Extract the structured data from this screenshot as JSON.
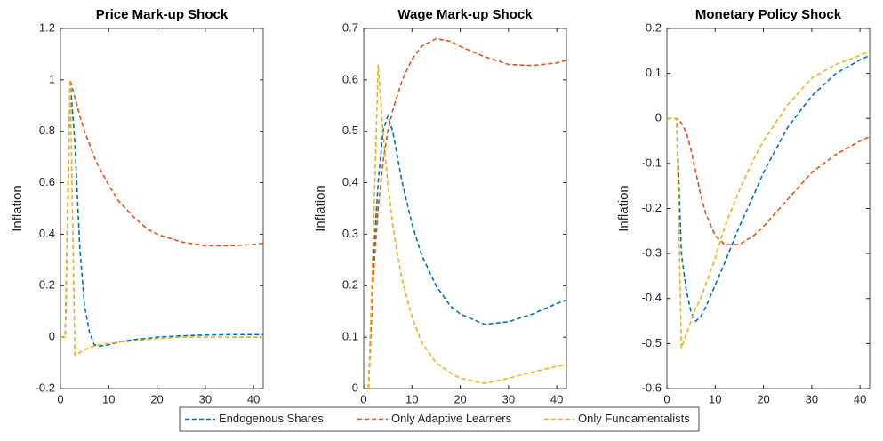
{
  "chart_data": [
    {
      "type": "line",
      "title": "Price Mark-up Shock",
      "y_label": "Inflation",
      "x": [
        0,
        1,
        2,
        3,
        4,
        5,
        6,
        7,
        8,
        10,
        12,
        15,
        18,
        20,
        25,
        30,
        35,
        40,
        42
      ],
      "xlim": [
        0,
        42
      ],
      "xticks": [
        0,
        10,
        20,
        30,
        40
      ],
      "ylim": [
        -0.2,
        1.2
      ],
      "yticks": [
        -0.2,
        0,
        0.2,
        0.4,
        0.6,
        0.8,
        1,
        1.2
      ],
      "series": [
        {
          "name": "Endogenous Shares",
          "color": "#0072bd",
          "values": [
            0,
            0,
            1,
            0.75,
            0.35,
            0.12,
            0.02,
            -0.03,
            -0.035,
            -0.03,
            -0.02,
            -0.01,
            -0.005,
            0,
            0.005,
            0.008,
            0.01,
            0.01,
            0.01
          ]
        },
        {
          "name": "Only Adaptive Learners",
          "color": "#d95319",
          "values": [
            0,
            0,
            1,
            0.93,
            0.86,
            0.8,
            0.75,
            0.7,
            0.66,
            0.59,
            0.53,
            0.47,
            0.42,
            0.4,
            0.37,
            0.355,
            0.355,
            0.36,
            0.365
          ]
        },
        {
          "name": "Only Fundamentalists",
          "color": "#edb120",
          "values": [
            0,
            0,
            1,
            -0.07,
            -0.06,
            -0.05,
            -0.04,
            -0.035,
            -0.03,
            -0.025,
            -0.02,
            -0.015,
            -0.01,
            -0.005,
            0,
            0,
            0,
            0,
            0
          ]
        }
      ]
    },
    {
      "type": "line",
      "title": "Wage Mark-up Shock",
      "y_label": "Inflation",
      "x": [
        0,
        1,
        2,
        3,
        4,
        5,
        6,
        7,
        8,
        10,
        12,
        15,
        18,
        20,
        25,
        30,
        35,
        40,
        42
      ],
      "xlim": [
        0,
        42
      ],
      "xticks": [
        0,
        10,
        20,
        30,
        40
      ],
      "ylim": [
        0,
        0.7
      ],
      "yticks": [
        0,
        0.1,
        0.2,
        0.3,
        0.4,
        0.5,
        0.6,
        0.7
      ],
      "series": [
        {
          "color": "#0072bd",
          "values": [
            null,
            0,
            0.25,
            0.4,
            0.5,
            0.53,
            0.5,
            0.45,
            0.4,
            0.32,
            0.26,
            0.2,
            0.16,
            0.145,
            0.125,
            0.13,
            0.145,
            0.165,
            0.172
          ]
        },
        {
          "color": "#d95319",
          "values": [
            null,
            0,
            0.22,
            0.35,
            0.44,
            0.5,
            0.54,
            0.57,
            0.6,
            0.64,
            0.665,
            0.68,
            0.675,
            0.665,
            0.645,
            0.63,
            0.628,
            0.633,
            0.638
          ]
        },
        {
          "color": "#edb120",
          "values": [
            null,
            0,
            0.3,
            0.63,
            0.5,
            0.4,
            0.32,
            0.26,
            0.21,
            0.14,
            0.09,
            0.05,
            0.03,
            0.02,
            0.01,
            0.02,
            0.032,
            0.043,
            0.047
          ]
        }
      ]
    },
    {
      "type": "line",
      "title": "Monetary Policy Shock",
      "y_label": "Inflation",
      "x": [
        0,
        1,
        2,
        3,
        4,
        5,
        6,
        7,
        8,
        10,
        12,
        15,
        18,
        20,
        25,
        30,
        35,
        40,
        42
      ],
      "xlim": [
        0,
        42
      ],
      "xticks": [
        0,
        10,
        20,
        30,
        40
      ],
      "ylim": [
        -0.6,
        0.2
      ],
      "yticks": [
        -0.6,
        -0.5,
        -0.4,
        -0.3,
        -0.2,
        -0.1,
        0,
        0.1,
        0.2
      ],
      "series": [
        {
          "color": "#0072bd",
          "values": [
            0,
            0,
            0,
            -0.3,
            -0.38,
            -0.43,
            -0.45,
            -0.44,
            -0.42,
            -0.37,
            -0.32,
            -0.24,
            -0.17,
            -0.12,
            -0.02,
            0.05,
            0.1,
            0.13,
            0.14
          ]
        },
        {
          "color": "#d95319",
          "values": [
            0,
            0,
            0,
            -0.01,
            -0.03,
            -0.07,
            -0.12,
            -0.17,
            -0.21,
            -0.26,
            -0.28,
            -0.28,
            -0.26,
            -0.24,
            -0.18,
            -0.12,
            -0.08,
            -0.05,
            -0.04
          ]
        },
        {
          "color": "#edb120",
          "values": [
            0,
            0,
            0,
            -0.51,
            -0.48,
            -0.45,
            -0.42,
            -0.4,
            -0.37,
            -0.31,
            -0.24,
            -0.16,
            -0.09,
            -0.05,
            0.03,
            0.09,
            0.12,
            0.14,
            0.15
          ]
        }
      ]
    }
  ]
}
